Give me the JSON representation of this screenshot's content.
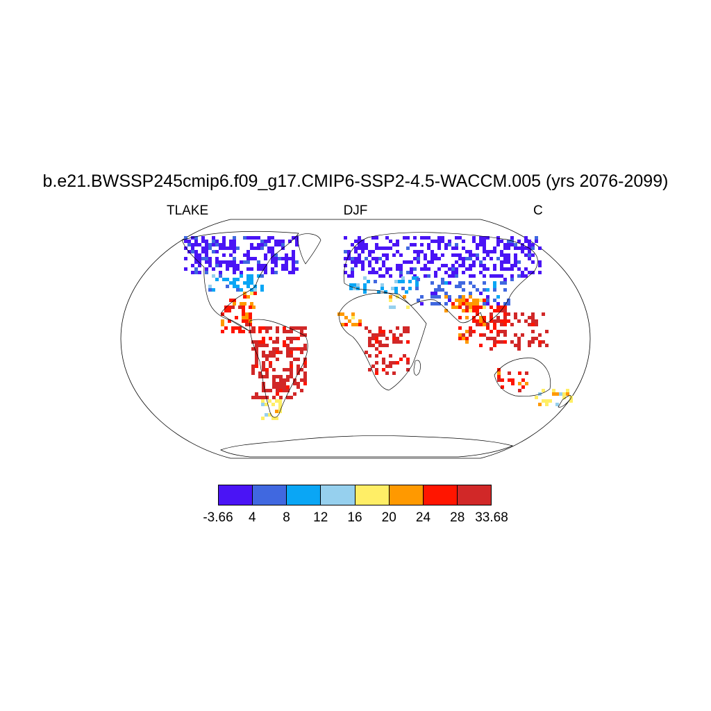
{
  "title": "b.e21.BWSSP245cmip6.f09_g17.CMIP6-SSP2-4.5-WACCM.005 (yrs 2076-2099)",
  "left_label": "TLAKE",
  "center_label": "DJF",
  "right_label": "C",
  "colorbar": {
    "colors": [
      "#4a14f5",
      "#4068e0",
      "#0aa6f5",
      "#96d0ee",
      "#ffee66",
      "#ff9900",
      "#ff1500",
      "#d12828"
    ],
    "labels": [
      "-3.66",
      "4",
      "8",
      "12",
      "16",
      "20",
      "24",
      "28",
      "33.68"
    ]
  }
}
